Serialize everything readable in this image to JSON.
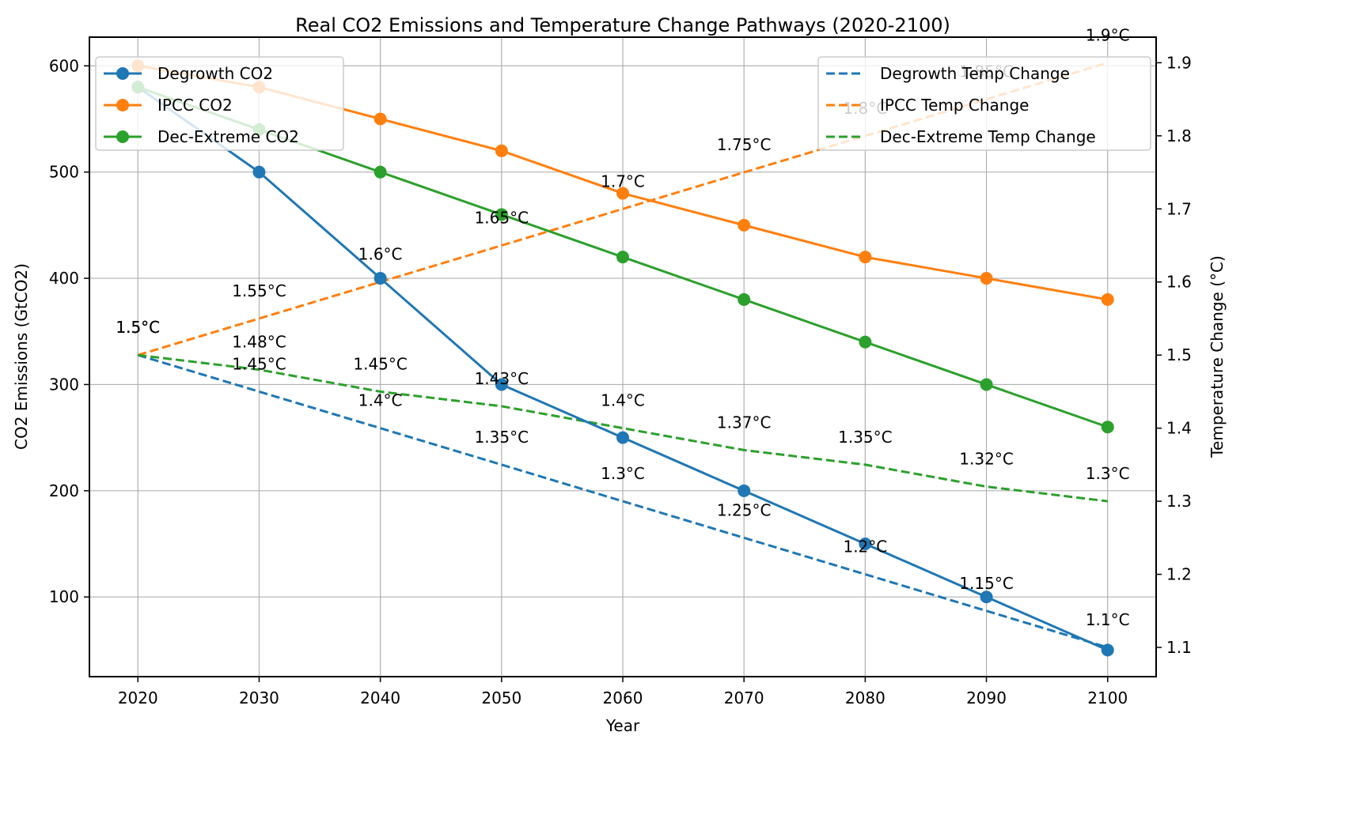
{
  "chart_data": {
    "type": "line",
    "title": "Real CO2 Emissions and Temperature Change Pathways (2020-2100)",
    "xlabel": "Year",
    "ylabel": "CO2 Emissions (GtCO2)",
    "y2label": "Temperature Change (°C)",
    "x": [
      2020,
      2030,
      2040,
      2050,
      2060,
      2070,
      2080,
      2090,
      2100
    ],
    "x_ticks": [
      "2020",
      "2030",
      "2040",
      "2050",
      "2060",
      "2070",
      "2080",
      "2090",
      "2100"
    ],
    "xlim": [
      2016,
      2104
    ],
    "ylim": [
      25,
      627
    ],
    "y_ticks": [
      "100",
      "200",
      "300",
      "400",
      "500",
      "600"
    ],
    "y_tick_values": [
      100,
      200,
      300,
      400,
      500,
      600
    ],
    "y2lim": [
      1.06,
      1.935
    ],
    "y2_ticks": [
      "1.1",
      "1.2",
      "1.3",
      "1.4",
      "1.5",
      "1.6",
      "1.7",
      "1.8",
      "1.9"
    ],
    "y2_tick_values": [
      1.1,
      1.2,
      1.3,
      1.4,
      1.5,
      1.6,
      1.7,
      1.8,
      1.9
    ],
    "grid": true,
    "series": [
      {
        "name": "Degrowth CO2",
        "axis": "left",
        "style": "solid-marker",
        "color": "#1f77b4",
        "values": [
          580,
          500,
          400,
          300,
          250,
          200,
          150,
          100,
          50
        ]
      },
      {
        "name": "IPCC CO2",
        "axis": "left",
        "style": "solid-marker",
        "color": "#ff7f0e",
        "values": [
          600,
          580,
          550,
          520,
          480,
          450,
          420,
          400,
          380
        ]
      },
      {
        "name": "Dec-Extreme CO2",
        "axis": "left",
        "style": "solid-marker",
        "color": "#2ca02c",
        "values": [
          580,
          540,
          500,
          460,
          420,
          380,
          340,
          300,
          260
        ]
      },
      {
        "name": "Degrowth Temp Change",
        "axis": "right",
        "style": "dashed",
        "color": "#1f77b4",
        "values": [
          1.5,
          1.45,
          1.4,
          1.35,
          1.3,
          1.25,
          1.2,
          1.15,
          1.1
        ],
        "labels": [
          "1.5°C",
          "1.45°C",
          "1.4°C",
          "1.35°C",
          "1.3°C",
          "1.25°C",
          "1.2°C",
          "1.15°C",
          "1.1°C"
        ]
      },
      {
        "name": "IPCC Temp Change",
        "axis": "right",
        "style": "dashed",
        "color": "#ff7f0e",
        "values": [
          1.5,
          1.55,
          1.6,
          1.65,
          1.7,
          1.75,
          1.8,
          1.85,
          1.9
        ],
        "labels": [
          "1.5°C",
          "1.55°C",
          "1.6°C",
          "1.65°C",
          "1.7°C",
          "1.75°C",
          "1.8°C",
          "1.85°C",
          "1.9°C"
        ]
      },
      {
        "name": "Dec-Extreme Temp Change",
        "axis": "right",
        "style": "dashed",
        "color": "#2ca02c",
        "values": [
          1.5,
          1.48,
          1.45,
          1.43,
          1.4,
          1.37,
          1.35,
          1.32,
          1.3
        ],
        "labels": [
          "1.5°C",
          "1.48°C",
          "1.45°C",
          "1.43°C",
          "1.4°C",
          "1.37°C",
          "1.35°C",
          "1.32°C",
          "1.3°C"
        ]
      }
    ],
    "legends": [
      {
        "placement": "top-left",
        "entries": [
          "Degrowth CO2",
          "IPCC CO2",
          "Dec-Extreme CO2"
        ]
      },
      {
        "placement": "top-right",
        "entries": [
          "Degrowth Temp Change",
          "IPCC Temp Change",
          "Dec-Extreme Temp Change"
        ]
      }
    ]
  }
}
